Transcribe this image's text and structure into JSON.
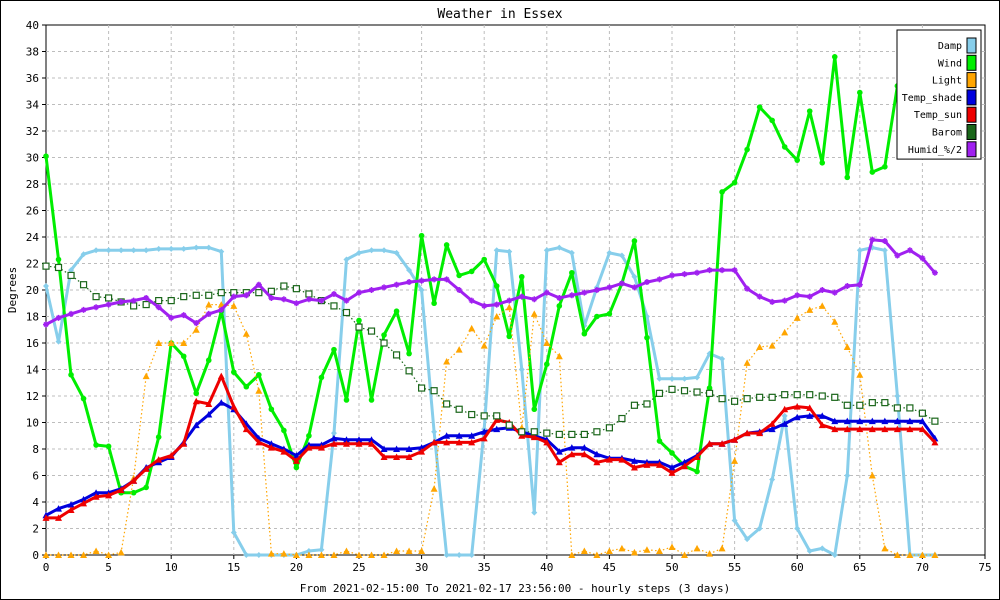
{
  "chart_data": {
    "type": "line",
    "title": "Weather in Essex",
    "ylabel": "Degrees",
    "xlabel": "From 2021-02-15:00 To 2021-02-17 23:56:00 - hourly steps (3 days)",
    "xlim": [
      0,
      75
    ],
    "ylim": [
      0,
      40
    ],
    "x_ticks": [
      0,
      5,
      10,
      15,
      20,
      25,
      30,
      35,
      40,
      45,
      50,
      55,
      60,
      65,
      70,
      75
    ],
    "y_ticks": [
      0,
      2,
      4,
      6,
      8,
      10,
      12,
      14,
      16,
      18,
      20,
      22,
      24,
      26,
      28,
      30,
      32,
      34,
      36,
      38,
      40
    ],
    "grid": true,
    "legend_position": "top-right",
    "series": [
      {
        "name": "Damp",
        "color": "#87ceeb",
        "marker": "diamond",
        "line_style": "solid",
        "values": [
          20.3,
          16.1,
          21.5,
          22.7,
          23.0,
          23.0,
          23.0,
          23.0,
          23.0,
          23.1,
          23.1,
          23.1,
          23.2,
          23.2,
          22.9,
          1.7,
          0.0,
          0.0,
          0.0,
          0.0,
          0.0,
          0.3,
          0.4,
          9.2,
          22.3,
          22.8,
          23.0,
          23.0,
          22.8,
          21.5,
          20.0,
          9.3,
          0.0,
          0.0,
          0.0,
          9.5,
          23.0,
          22.9,
          14.0,
          3.2,
          23.0,
          23.2,
          22.8,
          17.3,
          20.2,
          22.8,
          22.6,
          21.0,
          18.0,
          13.3,
          13.3,
          13.3,
          13.4,
          15.2,
          14.8,
          2.6,
          1.2,
          2.0,
          5.7,
          10.5,
          2.0,
          0.3,
          0.5,
          0.0,
          6.0,
          23.0,
          23.2,
          23.0,
          12.0,
          0.0,
          0.0,
          0.0
        ]
      },
      {
        "name": "Wind",
        "color": "#00ee00",
        "marker": "circle",
        "line_style": "solid",
        "values": [
          30.1,
          22.3,
          13.6,
          11.8,
          8.3,
          8.2,
          4.7,
          4.7,
          5.1,
          8.9,
          16.0,
          15.0,
          12.2,
          14.7,
          18.4,
          13.8,
          12.7,
          13.6,
          11.0,
          9.4,
          6.6,
          9.0,
          13.4,
          15.5,
          11.7,
          17.7,
          11.7,
          16.6,
          18.4,
          15.2,
          24.1,
          19.0,
          23.4,
          21.1,
          21.4,
          22.3,
          20.3,
          16.5,
          21.0,
          11.0,
          14.4,
          18.8,
          21.3,
          16.7,
          18.0,
          18.2,
          20.5,
          23.7,
          16.4,
          8.6,
          7.7,
          6.7,
          6.3,
          12.6,
          27.4,
          28.1,
          30.6,
          33.8,
          32.8,
          30.8,
          29.8,
          33.5,
          29.6,
          37.6,
          28.5,
          34.9,
          28.9,
          29.3,
          35.4
        ]
      },
      {
        "name": "Light",
        "color": "#ffa500",
        "marker": "triangle",
        "line_style": "dotted",
        "values": [
          0.0,
          0.0,
          0.0,
          0.0,
          0.3,
          0.0,
          0.2,
          5.8,
          13.5,
          16.0,
          16.0,
          16.0,
          17.0,
          18.9,
          18.9,
          18.8,
          16.7,
          12.4,
          0.1,
          0.1,
          0.0,
          0.0,
          0.0,
          0.0,
          0.3,
          0.0,
          0.0,
          0.0,
          0.3,
          0.3,
          0.3,
          5.0,
          14.6,
          15.5,
          17.1,
          15.8,
          18.0,
          18.7,
          9.6,
          18.2,
          16.0,
          15.0,
          0.0,
          0.3,
          0.0,
          0.3,
          0.5,
          0.2,
          0.4,
          0.3,
          0.6,
          0.0,
          0.5,
          0.1,
          0.5,
          7.1,
          14.5,
          15.7,
          15.8,
          16.8,
          17.9,
          18.5,
          18.8,
          17.6,
          15.7,
          13.6,
          6.0,
          0.5,
          0.0,
          0.0,
          0.0,
          0.0
        ]
      },
      {
        "name": "Temp_shade",
        "color": "#0000dd",
        "marker": "triangle",
        "line_style": "solid",
        "values": [
          3.0,
          3.5,
          3.8,
          4.2,
          4.7,
          4.7,
          5.0,
          5.6,
          6.6,
          7.0,
          7.4,
          8.5,
          9.8,
          10.6,
          11.5,
          11.0,
          9.9,
          8.8,
          8.4,
          8.0,
          7.5,
          8.3,
          8.3,
          8.8,
          8.7,
          8.7,
          8.7,
          8.0,
          8.0,
          8.0,
          8.1,
          8.5,
          9.0,
          9.0,
          9.0,
          9.3,
          9.5,
          9.6,
          9.3,
          9.0,
          8.7,
          7.8,
          8.1,
          8.1,
          7.6,
          7.3,
          7.3,
          7.1,
          7.0,
          7.0,
          6.6,
          7.0,
          7.5,
          8.4,
          8.4,
          8.7,
          9.2,
          9.3,
          9.5,
          9.9,
          10.4,
          10.5,
          10.5,
          10.1,
          10.1,
          10.1,
          10.1,
          10.1,
          10.1,
          10.1,
          10.1,
          8.8
        ]
      },
      {
        "name": "Temp_sun",
        "color": "#ee0000",
        "marker": "triangle",
        "line_style": "solid",
        "values": [
          2.8,
          2.8,
          3.4,
          3.9,
          4.4,
          4.5,
          4.9,
          5.6,
          6.5,
          7.2,
          7.5,
          8.4,
          11.6,
          11.4,
          13.5,
          11.2,
          9.5,
          8.5,
          8.1,
          7.8,
          7.1,
          8.1,
          8.1,
          8.4,
          8.4,
          8.4,
          8.4,
          7.4,
          7.4,
          7.4,
          7.8,
          8.5,
          8.5,
          8.5,
          8.5,
          8.8,
          10.2,
          10.0,
          9.0,
          8.9,
          8.5,
          7.0,
          7.6,
          7.6,
          7.0,
          7.2,
          7.2,
          6.6,
          6.8,
          6.8,
          6.2,
          6.7,
          7.4,
          8.4,
          8.4,
          8.7,
          9.2,
          9.2,
          9.9,
          11.0,
          11.2,
          11.1,
          9.8,
          9.5,
          9.5,
          9.5,
          9.5,
          9.5,
          9.5,
          9.5,
          9.5,
          8.5
        ]
      },
      {
        "name": "Barom",
        "color": "#1a661a",
        "marker": "square",
        "line_style": "dotted",
        "values": [
          21.8,
          21.7,
          21.1,
          20.4,
          19.5,
          19.4,
          19.1,
          18.8,
          18.9,
          19.2,
          19.2,
          19.5,
          19.6,
          19.6,
          19.8,
          19.8,
          19.8,
          19.8,
          19.9,
          20.3,
          20.1,
          19.7,
          19.2,
          18.8,
          18.3,
          17.2,
          16.9,
          16.0,
          15.1,
          13.9,
          12.6,
          12.4,
          11.4,
          11.0,
          10.6,
          10.5,
          10.5,
          9.8,
          9.3,
          9.3,
          9.2,
          9.1,
          9.1,
          9.1,
          9.3,
          9.6,
          10.3,
          11.3,
          11.4,
          12.2,
          12.5,
          12.4,
          12.3,
          12.2,
          11.8,
          11.6,
          11.8,
          11.9,
          11.9,
          12.1,
          12.1,
          12.1,
          12.0,
          11.9,
          11.3,
          11.3,
          11.5,
          11.5,
          11.1,
          11.1,
          10.7,
          10.1
        ]
      },
      {
        "name": "Humid_%/2",
        "color": "#a020f0",
        "marker": "star",
        "line_style": "solid",
        "values": [
          17.4,
          17.9,
          18.2,
          18.5,
          18.7,
          18.9,
          19.1,
          19.2,
          19.4,
          18.7,
          17.9,
          18.1,
          17.5,
          18.2,
          18.5,
          19.5,
          19.6,
          20.4,
          19.4,
          19.3,
          19.0,
          19.3,
          19.2,
          19.7,
          19.2,
          19.8,
          20.0,
          20.2,
          20.4,
          20.6,
          20.7,
          20.8,
          20.8,
          20.0,
          19.2,
          18.8,
          18.9,
          19.2,
          19.5,
          19.3,
          19.8,
          19.4,
          19.6,
          19.8,
          20.0,
          20.2,
          20.5,
          20.2,
          20.6,
          20.8,
          21.1,
          21.2,
          21.3,
          21.5,
          21.5,
          21.5,
          20.1,
          19.5,
          19.1,
          19.2,
          19.6,
          19.5,
          20.0,
          19.8,
          20.3,
          20.4,
          23.8,
          23.7,
          22.6,
          23.0,
          22.4,
          21.3
        ]
      }
    ]
  }
}
